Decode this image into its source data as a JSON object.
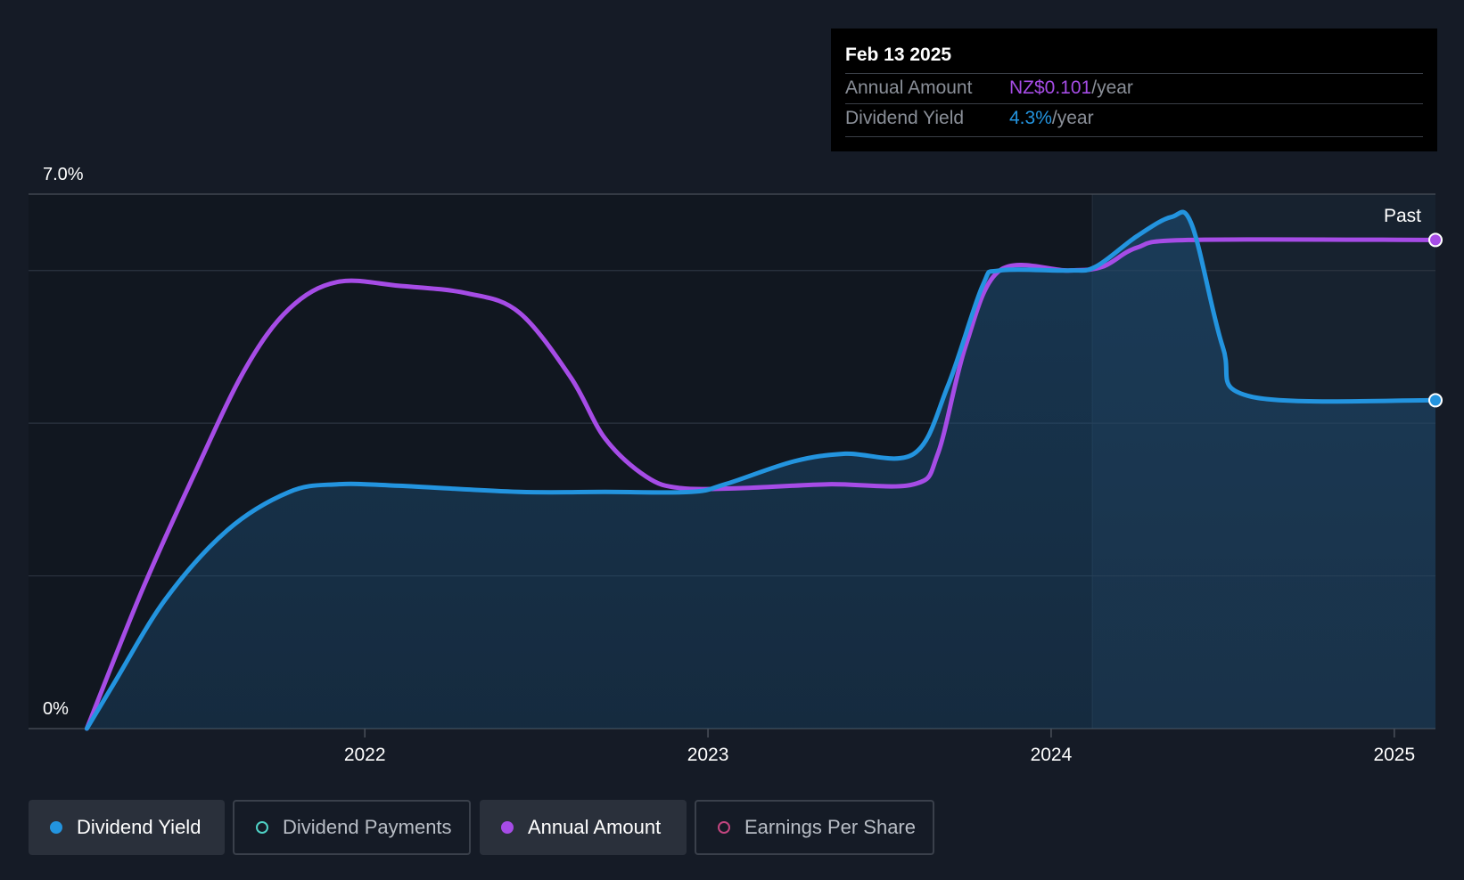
{
  "chart_data": {
    "type": "area",
    "y_axis": {
      "top_label": "7.0%",
      "bottom_label": "0%",
      "ylim": [
        0,
        7.0
      ],
      "gridlines": [
        0,
        2.0,
        4.0,
        6.0,
        7.0
      ]
    },
    "x_axis": {
      "ticks": [
        2022,
        2023,
        2024,
        2025
      ],
      "xlim": [
        2021.02,
        2025.12
      ]
    },
    "past_label": "Past",
    "forecast_start": 2024.12,
    "series": [
      {
        "name": "Dividend Yield",
        "color": "#2394df",
        "filled": true,
        "points": [
          [
            2021.19,
            0.0
          ],
          [
            2021.27,
            0.6
          ],
          [
            2021.42,
            1.7
          ],
          [
            2021.6,
            2.6
          ],
          [
            2021.78,
            3.1
          ],
          [
            2021.92,
            3.2
          ],
          [
            2022.1,
            3.18
          ],
          [
            2022.45,
            3.1
          ],
          [
            2022.7,
            3.1
          ],
          [
            2022.95,
            3.1
          ],
          [
            2023.05,
            3.2
          ],
          [
            2023.25,
            3.5
          ],
          [
            2023.4,
            3.6
          ],
          [
            2023.6,
            3.6
          ],
          [
            2023.7,
            4.5
          ],
          [
            2023.8,
            5.8
          ],
          [
            2023.85,
            6.0
          ],
          [
            2024.05,
            6.0
          ],
          [
            2024.13,
            6.05
          ],
          [
            2024.25,
            6.45
          ],
          [
            2024.35,
            6.7
          ],
          [
            2024.41,
            6.6
          ],
          [
            2024.5,
            5.0
          ],
          [
            2024.58,
            4.35
          ],
          [
            2025.12,
            4.3
          ]
        ]
      },
      {
        "name": "Annual Amount",
        "color": "#a64ce6",
        "filled": false,
        "points": [
          [
            2021.19,
            0.0
          ],
          [
            2021.35,
            1.8
          ],
          [
            2021.5,
            3.3
          ],
          [
            2021.65,
            4.7
          ],
          [
            2021.78,
            5.5
          ],
          [
            2021.92,
            5.85
          ],
          [
            2022.1,
            5.8
          ],
          [
            2022.3,
            5.7
          ],
          [
            2022.45,
            5.45
          ],
          [
            2022.6,
            4.6
          ],
          [
            2022.7,
            3.8
          ],
          [
            2022.82,
            3.3
          ],
          [
            2022.92,
            3.15
          ],
          [
            2023.1,
            3.15
          ],
          [
            2023.35,
            3.2
          ],
          [
            2023.6,
            3.2
          ],
          [
            2023.67,
            3.6
          ],
          [
            2023.75,
            5.0
          ],
          [
            2023.85,
            6.0
          ],
          [
            2024.05,
            6.0
          ],
          [
            2024.15,
            6.05
          ],
          [
            2024.25,
            6.3
          ],
          [
            2024.4,
            6.4
          ],
          [
            2025.12,
            6.4
          ]
        ]
      }
    ]
  },
  "tooltip": {
    "date": "Feb 13 2025",
    "rows": [
      {
        "label": "Annual Amount",
        "value": "NZ$0.101",
        "unit": "/year",
        "color": "#a64ce6"
      },
      {
        "label": "Dividend Yield",
        "value": "4.3%",
        "unit": "/year",
        "color": "#2394df"
      }
    ]
  },
  "legend": [
    {
      "label": "Dividend Yield",
      "color": "#2394df",
      "active": true
    },
    {
      "label": "Dividend Payments",
      "color": "#4fd1c5",
      "active": false
    },
    {
      "label": "Annual Amount",
      "color": "#a64ce6",
      "active": true
    },
    {
      "label": "Earnings Per Share",
      "color": "#c2457f",
      "active": false
    }
  ]
}
